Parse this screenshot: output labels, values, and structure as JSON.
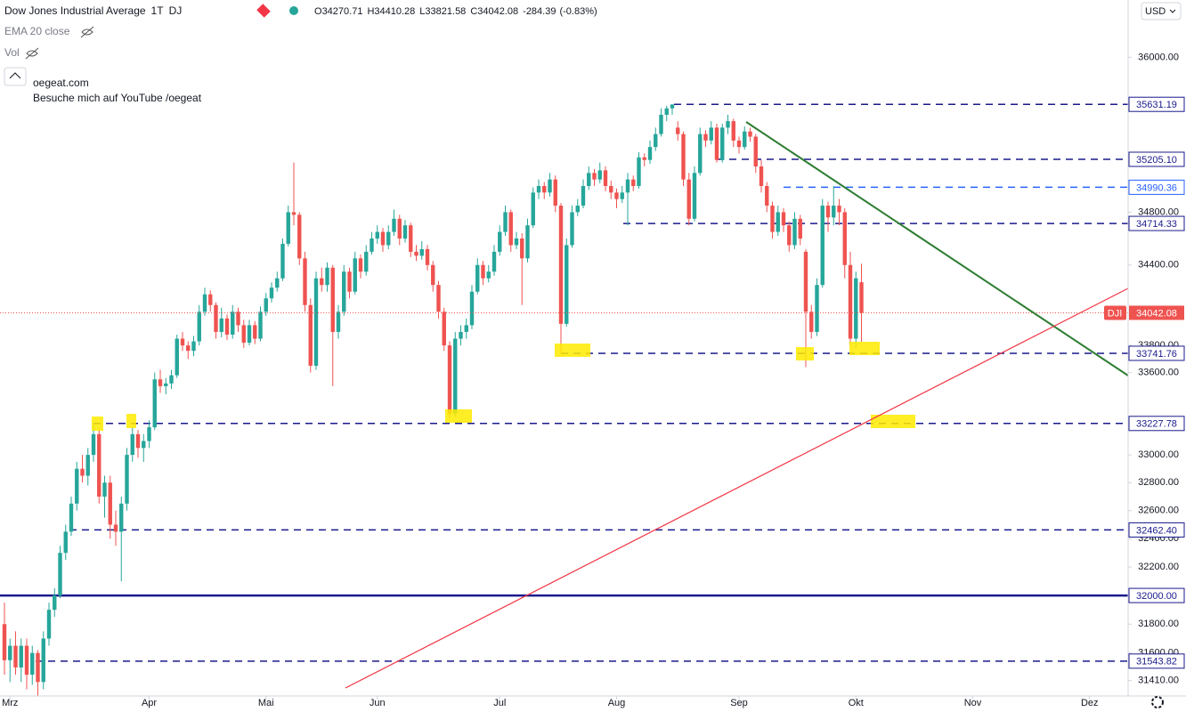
{
  "chart_data": {
    "type": "candlestick",
    "legend": {
      "title": "Dow Jones Industrial Average",
      "interval": "1T",
      "exchange": "DJ",
      "ohlc_letters": [
        "O",
        "H",
        "L",
        "C"
      ],
      "change": -284.39,
      "change_pct": "(-0.83%)",
      "indicator": "EMA 20 close",
      "volume": "Vol"
    },
    "note": [
      "oegeat.com",
      "Besuche mich auf YouTube /oegeat"
    ],
    "currency": "USD",
    "symbol_tag": "DJI",
    "log_scale": true,
    "grid": false,
    "up_color": "#26a69a",
    "down_color": "#ef5350",
    "ylim": [
      31304,
      36454
    ],
    "yticks": [
      {
        "value": 36000,
        "label": "36000.00"
      },
      {
        "value": 34800,
        "label": "34800.00"
      },
      {
        "value": 34400,
        "label": "34400.00"
      },
      {
        "value": 33800,
        "label": "33800.00"
      },
      {
        "value": 33600,
        "label": "33600.00"
      },
      {
        "value": 33000,
        "label": "33000.00"
      },
      {
        "value": 32800,
        "label": "32800.00"
      },
      {
        "value": 32600,
        "label": "32600.00"
      },
      {
        "value": 32400,
        "label": "32400.00"
      },
      {
        "value": 32200,
        "label": "32200.00"
      },
      {
        "value": 31800,
        "label": "31800.00"
      },
      {
        "value": 31600,
        "label": "31600.00"
      },
      {
        "value": 31410,
        "label": "31410.00"
      }
    ],
    "xticks": [
      {
        "value": 1,
        "label": "Mrz"
      },
      {
        "value": 26,
        "label": "Apr"
      },
      {
        "value": 47,
        "label": "Mai"
      },
      {
        "value": 67,
        "label": "Jun"
      },
      {
        "value": 89,
        "label": "Jul"
      },
      {
        "value": 110,
        "label": "Aug"
      },
      {
        "value": 132,
        "label": "Sep"
      },
      {
        "value": 153,
        "label": "Okt"
      },
      {
        "value": 174,
        "label": "Nov"
      },
      {
        "value": 195,
        "label": "Dez"
      }
    ],
    "levels": [
      {
        "value": 35631.19,
        "color": "#1a1a8c",
        "dashed": true
      },
      {
        "value": 35205.1,
        "label": "35205.10",
        "color": "#1a1a8c",
        "dashed": true
      },
      {
        "value": 34990.36,
        "color": "#2962ff",
        "dashed": true
      },
      {
        "value": 34714.33,
        "color": "#1a1a8c",
        "dashed": true
      },
      {
        "value": 33741.76,
        "color": "#1a1a8c",
        "dashed": true
      },
      {
        "value": 33227.78,
        "color": "#1a1a8c",
        "dashed": true
      },
      {
        "value": 32462.4,
        "label": "32462.40",
        "color": "#1a1a8c",
        "dashed": true
      },
      {
        "value": 32000,
        "label": "32000.00",
        "color": "#1a1a8c",
        "dashed": false
      },
      {
        "value": 31543.82,
        "color": "#1a1a8c",
        "dashed": true
      }
    ],
    "ohlc": [
      [
        31800,
        31950,
        31450,
        31550
      ],
      [
        31550,
        31700,
        31400,
        31650
      ],
      [
        31650,
        31750,
        31450,
        31500
      ],
      [
        31500,
        31700,
        31400,
        31650
      ],
      [
        31650,
        31700,
        31350,
        31450
      ],
      [
        31450,
        31650,
        31380,
        31600
      ],
      [
        31600,
        31620,
        31300,
        31400
      ],
      [
        31400,
        31750,
        31350,
        31700
      ],
      [
        31700,
        31950,
        31650,
        31900
      ],
      [
        31900,
        32050,
        31850,
        32000
      ],
      [
        32000,
        32350,
        31980,
        32300
      ],
      [
        32300,
        32500,
        32250,
        32450
      ],
      [
        32450,
        32700,
        32420,
        32650
      ],
      [
        32650,
        32950,
        32600,
        32900
      ],
      [
        32900,
        33000,
        32800,
        32850
      ],
      [
        32850,
        33050,
        32780,
        33000
      ],
      [
        33000,
        33230,
        32950,
        33150
      ],
      [
        33150,
        33180,
        32650,
        32700
      ],
      [
        32700,
        32850,
        32550,
        32800
      ],
      [
        32800,
        32850,
        32400,
        32500
      ],
      [
        32500,
        32600,
        32350,
        32450
      ],
      [
        32450,
        32700,
        32100,
        32650
      ],
      [
        32650,
        33050,
        32600,
        33000
      ],
      [
        33000,
        33200,
        32950,
        33150
      ],
      [
        33150,
        33180,
        32980,
        33050
      ],
      [
        33050,
        33150,
        32950,
        33100
      ],
      [
        33100,
        33250,
        33050,
        33200
      ],
      [
        33200,
        33600,
        33180,
        33550
      ],
      [
        33550,
        33620,
        33450,
        33500
      ],
      [
        33500,
        33560,
        33440,
        33520
      ],
      [
        33520,
        33620,
        33480,
        33580
      ],
      [
        33580,
        33880,
        33560,
        33850
      ],
      [
        33850,
        33900,
        33760,
        33800
      ],
      [
        33800,
        33830,
        33700,
        33760
      ],
      [
        33760,
        33870,
        33720,
        33830
      ],
      [
        33830,
        34100,
        33800,
        34050
      ],
      [
        34050,
        34230,
        34020,
        34180
      ],
      [
        34180,
        34210,
        34050,
        34100
      ],
      [
        34100,
        34120,
        33850,
        33900
      ],
      [
        33900,
        34080,
        33860,
        34000
      ],
      [
        34000,
        34030,
        33840,
        33880
      ],
      [
        33880,
        34100,
        33850,
        34050
      ],
      [
        34050,
        34080,
        33900,
        33950
      ],
      [
        33950,
        33990,
        33780,
        33820
      ],
      [
        33820,
        33990,
        33800,
        33950
      ],
      [
        33950,
        33980,
        33810,
        33850
      ],
      [
        33850,
        34090,
        33830,
        34050
      ],
      [
        34050,
        34190,
        34020,
        34150
      ],
      [
        34150,
        34270,
        34120,
        34230
      ],
      [
        34230,
        34350,
        34200,
        34300
      ],
      [
        34300,
        34600,
        34280,
        34560
      ],
      [
        34560,
        34850,
        34540,
        34800
      ],
      [
        34800,
        35180,
        34700,
        34780
      ],
      [
        34780,
        34800,
        34400,
        34450
      ],
      [
        34450,
        34500,
        34050,
        34100
      ],
      [
        34100,
        34150,
        33600,
        33650
      ],
      [
        33650,
        34350,
        33620,
        34300
      ],
      [
        34300,
        34380,
        34200,
        34250
      ],
      [
        34250,
        34420,
        34200,
        34380
      ],
      [
        34380,
        34400,
        33500,
        33900
      ],
      [
        33900,
        34100,
        33850,
        34050
      ],
      [
        34050,
        34400,
        34020,
        34350
      ],
      [
        34350,
        34380,
        34150,
        34200
      ],
      [
        34200,
        34500,
        34180,
        34450
      ],
      [
        34450,
        34480,
        34300,
        34350
      ],
      [
        34350,
        34550,
        34320,
        34500
      ],
      [
        34500,
        34650,
        34480,
        34600
      ],
      [
        34600,
        34700,
        34560,
        34650
      ],
      [
        34650,
        34680,
        34500,
        34550
      ],
      [
        34550,
        34700,
        34520,
        34650
      ],
      [
        34650,
        34820,
        34620,
        34750
      ],
      [
        34750,
        34780,
        34550,
        34600
      ],
      [
        34600,
        34740,
        34570,
        34700
      ],
      [
        34700,
        34720,
        34460,
        34500
      ],
      [
        34500,
        34550,
        34430,
        34470
      ],
      [
        34470,
        34580,
        34440,
        34520
      ],
      [
        34520,
        34550,
        34360,
        34400
      ],
      [
        34400,
        34430,
        34200,
        34250
      ],
      [
        34250,
        34280,
        34000,
        34050
      ],
      [
        34050,
        34080,
        33760,
        33800
      ],
      [
        33800,
        33830,
        33270,
        33300
      ],
      [
        33300,
        33900,
        33280,
        33850
      ],
      [
        33850,
        33950,
        33800,
        33900
      ],
      [
        33900,
        34000,
        33850,
        33950
      ],
      [
        33950,
        34250,
        33920,
        34200
      ],
      [
        34200,
        34450,
        34180,
        34400
      ],
      [
        34400,
        34430,
        34250,
        34300
      ],
      [
        34300,
        34400,
        34270,
        34350
      ],
      [
        34350,
        34550,
        34320,
        34500
      ],
      [
        34500,
        34700,
        34470,
        34650
      ],
      [
        34650,
        34850,
        34620,
        34800
      ],
      [
        34800,
        34820,
        34500,
        34550
      ],
      [
        34550,
        34650,
        34520,
        34600
      ],
      [
        34600,
        34640,
        34100,
        34450
      ],
      [
        34450,
        34750,
        34420,
        34700
      ],
      [
        34700,
        34990,
        34680,
        34950
      ],
      [
        34950,
        35050,
        34900,
        35000
      ],
      [
        35000,
        35030,
        34900,
        34950
      ],
      [
        34950,
        35100,
        34920,
        35050
      ],
      [
        35050,
        35080,
        34800,
        34850
      ],
      [
        34850,
        34870,
        33740,
        33960
      ],
      [
        33960,
        34600,
        33940,
        34550
      ],
      [
        34550,
        34850,
        34530,
        34800
      ],
      [
        34800,
        34900,
        34770,
        34850
      ],
      [
        34850,
        35050,
        34830,
        35000
      ],
      [
        35000,
        35150,
        34970,
        35100
      ],
      [
        35100,
        35130,
        35000,
        35050
      ],
      [
        35050,
        35180,
        35020,
        35120
      ],
      [
        35120,
        35150,
        34960,
        35000
      ],
      [
        35000,
        35040,
        34900,
        34950
      ],
      [
        34950,
        34980,
        34830,
        34900
      ],
      [
        34900,
        35000,
        34870,
        34950
      ],
      [
        34950,
        35100,
        34700,
        35050
      ],
      [
        35050,
        35080,
        34960,
        35000
      ],
      [
        35000,
        35260,
        34980,
        35220
      ],
      [
        35220,
        35250,
        35150,
        35200
      ],
      [
        35200,
        35350,
        35170,
        35300
      ],
      [
        35300,
        35450,
        35270,
        35400
      ],
      [
        35400,
        35600,
        35380,
        35550
      ],
      [
        35550,
        35620,
        35500,
        35600
      ],
      [
        35600,
        35631,
        35550,
        35630
      ],
      [
        35450,
        35500,
        35350,
        35400
      ],
      [
        35400,
        35420,
        35000,
        35050
      ],
      [
        35050,
        35100,
        34700,
        34750
      ],
      [
        34750,
        35150,
        34730,
        35100
      ],
      [
        35100,
        35450,
        35080,
        35400
      ],
      [
        35400,
        35430,
        35300,
        35350
      ],
      [
        35350,
        35500,
        35320,
        35450
      ],
      [
        35450,
        35480,
        35180,
        35200
      ],
      [
        35200,
        35480,
        35180,
        35450
      ],
      [
        35450,
        35550,
        35400,
        35500
      ],
      [
        35500,
        35520,
        35300,
        35350
      ],
      [
        35350,
        35380,
        35250,
        35300
      ],
      [
        35300,
        35460,
        35280,
        35420
      ],
      [
        35420,
        35450,
        35340,
        35380
      ],
      [
        35380,
        35400,
        35100,
        35150
      ],
      [
        35150,
        35200,
        34950,
        35000
      ],
      [
        35000,
        35030,
        34800,
        34850
      ],
      [
        34850,
        34880,
        34600,
        34650
      ],
      [
        34650,
        34850,
        34620,
        34800
      ],
      [
        34800,
        34830,
        34650,
        34700
      ],
      [
        34700,
        34730,
        34500,
        34550
      ],
      [
        34550,
        34800,
        34520,
        34750
      ],
      [
        34750,
        34780,
        34550,
        34600
      ],
      [
        34500,
        34520,
        33640,
        34050
      ],
      [
        34050,
        34100,
        33850,
        33900
      ],
      [
        33900,
        34300,
        33870,
        34250
      ],
      [
        34250,
        34900,
        34230,
        34850
      ],
      [
        34850,
        34880,
        34650,
        34760
      ],
      [
        34760,
        35000,
        34700,
        34850
      ],
      [
        34850,
        34900,
        34700,
        34800
      ],
      [
        34800,
        34830,
        34300,
        34400
      ],
      [
        34400,
        34500,
        33800,
        33850
      ],
      [
        33850,
        34350,
        33780,
        34300
      ],
      [
        34270.71,
        34410.28,
        33821.58,
        34042.08
      ]
    ]
  }
}
